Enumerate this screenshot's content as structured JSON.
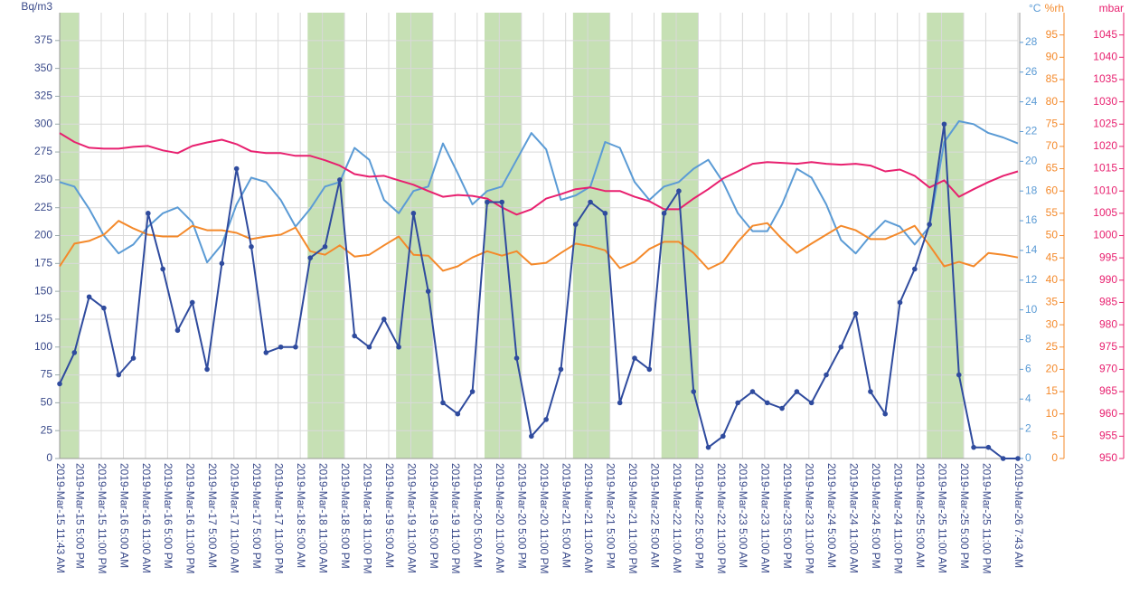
{
  "chart_data": {
    "type": "line",
    "y_label": "Bq/m3",
    "y2_label": "°C",
    "y3_label": "%rh",
    "y4_label": "mbar",
    "x": [
      "2019-Mar-15 11:43 AM",
      "2019-Mar-15 3:43 PM",
      "2019-Mar-15 7:43 PM",
      "2019-Mar-15 11:43 PM",
      "2019-Mar-16 3:43 AM",
      "2019-Mar-16 7:43 AM",
      "2019-Mar-16 11:43 AM",
      "2019-Mar-16 3:43 PM",
      "2019-Mar-16 7:43 PM",
      "2019-Mar-16 11:43 PM",
      "2019-Mar-17 3:43 AM",
      "2019-Mar-17 7:43 AM",
      "2019-Mar-17 11:43 AM",
      "2019-Mar-17 3:43 PM",
      "2019-Mar-17 7:43 PM",
      "2019-Mar-17 11:43 PM",
      "2019-Mar-18 3:43 AM",
      "2019-Mar-18 7:43 AM",
      "2019-Mar-18 11:43 AM",
      "2019-Mar-18 3:43 PM",
      "2019-Mar-18 7:43 PM",
      "2019-Mar-18 11:43 PM",
      "2019-Mar-19 3:43 AM",
      "2019-Mar-19 7:43 AM",
      "2019-Mar-19 11:43 AM",
      "2019-Mar-19 3:43 PM",
      "2019-Mar-19 7:43 PM",
      "2019-Mar-19 11:43 PM",
      "2019-Mar-20 3:43 AM",
      "2019-Mar-20 7:43 AM",
      "2019-Mar-20 11:43 AM",
      "2019-Mar-20 3:43 PM",
      "2019-Mar-20 7:43 PM",
      "2019-Mar-20 11:43 PM",
      "2019-Mar-21 3:43 AM",
      "2019-Mar-21 7:43 AM",
      "2019-Mar-21 11:43 AM",
      "2019-Mar-21 3:43 PM",
      "2019-Mar-21 7:43 PM",
      "2019-Mar-21 11:43 PM",
      "2019-Mar-22 3:43 AM",
      "2019-Mar-22 7:43 AM",
      "2019-Mar-22 11:43 AM",
      "2019-Mar-22 3:43 PM",
      "2019-Mar-22 7:43 PM",
      "2019-Mar-22 11:43 PM",
      "2019-Mar-23 3:43 AM",
      "2019-Mar-23 7:43 AM",
      "2019-Mar-23 11:43 AM",
      "2019-Mar-23 3:43 PM",
      "2019-Mar-23 7:43 PM",
      "2019-Mar-23 11:43 PM",
      "2019-Mar-24 3:43 AM",
      "2019-Mar-24 7:43 AM",
      "2019-Mar-24 11:43 AM",
      "2019-Mar-24 3:43 PM",
      "2019-Mar-24 7:43 PM",
      "2019-Mar-24 11:43 PM",
      "2019-Mar-25 3:43 AM",
      "2019-Mar-25 7:43 AM",
      "2019-Mar-25 11:43 AM",
      "2019-Mar-25 3:43 PM",
      "2019-Mar-25 7:43 PM",
      "2019-Mar-25 11:43 PM",
      "2019-Mar-26 3:43 AM",
      "2019-Mar-26 7:43 AM"
    ],
    "series": [
      {
        "axis": "y",
        "color": "#2f4b9e",
        "markers": true,
        "values": [
          67,
          95,
          145,
          135,
          75,
          90,
          220,
          170,
          115,
          140,
          80,
          175,
          260,
          190,
          95,
          100,
          100,
          180,
          190,
          250,
          110,
          100,
          125,
          100,
          220,
          150,
          50,
          40,
          60,
          230,
          230,
          90,
          20,
          35,
          80,
          210,
          230,
          220,
          50,
          90,
          80,
          220,
          240,
          60,
          10,
          20,
          50,
          60,
          50,
          45,
          60,
          50,
          75,
          100,
          130,
          60,
          40,
          140,
          170,
          210,
          300,
          75,
          10,
          10,
          0,
          0
        ]
      },
      {
        "axis": "y2",
        "color": "#5b9bd5",
        "values": [
          18.6,
          18.3,
          16.8,
          15,
          13.8,
          14.4,
          15.6,
          16.5,
          16.9,
          15.9,
          13.2,
          14.4,
          17.1,
          18.9,
          18.6,
          17.4,
          15.6,
          16.8,
          18.3,
          18.6,
          20.9,
          20.1,
          17.4,
          16.5,
          18,
          18.3,
          21.2,
          19.2,
          17.1,
          18,
          18.3,
          20.1,
          21.9,
          20.8,
          17.4,
          17.7,
          18.3,
          21.3,
          20.9,
          18.6,
          17.4,
          18.3,
          18.6,
          19.5,
          20.1,
          18.6,
          16.5,
          15.3,
          15.3,
          17.1,
          19.5,
          18.9,
          17.1,
          14.7,
          13.8,
          15,
          16,
          15.6,
          14.4,
          15.6,
          21.3,
          22.7,
          22.5,
          21.9,
          21.6,
          21.2
        ]
      },
      {
        "axis": "y3",
        "color": "#f4892a",
        "values": [
          43.1,
          48.2,
          48.8,
          50.2,
          53.3,
          51.6,
          50.2,
          49.8,
          49.8,
          52.2,
          51.2,
          51.2,
          50.6,
          49.2,
          49.8,
          50.2,
          51.8,
          46.5,
          45.7,
          47.8,
          45.3,
          45.7,
          47.8,
          49.8,
          45.7,
          45.5,
          42.1,
          43.1,
          45.1,
          46.5,
          45.5,
          46.5,
          43.5,
          43.9,
          46.1,
          48.2,
          47.6,
          46.7,
          42.7,
          44.1,
          47,
          48.6,
          48.6,
          46.1,
          42.5,
          44.1,
          48.6,
          52.2,
          52.8,
          49.2,
          46.1,
          48.2,
          50.2,
          52.2,
          51.2,
          49.2,
          49.2,
          50.6,
          52.2,
          47.8,
          43.1,
          44.1,
          43.1,
          46.1,
          45.7,
          45.1
        ]
      },
      {
        "axis": "y4",
        "color": "#e8206f",
        "values": [
          1023,
          1021,
          1019.7,
          1019.5,
          1019.5,
          1019.9,
          1020.1,
          1019.1,
          1018.5,
          1020.1,
          1020.9,
          1021.5,
          1020.5,
          1018.9,
          1018.5,
          1018.5,
          1017.9,
          1017.9,
          1016.9,
          1015.7,
          1013.8,
          1013.2,
          1013.4,
          1012.4,
          1011.4,
          1010,
          1008.7,
          1009.1,
          1008.9,
          1008.3,
          1006.3,
          1004.7,
          1005.9,
          1008.3,
          1009.3,
          1010.4,
          1010.8,
          1010,
          1010,
          1008.7,
          1007.7,
          1005.9,
          1005.9,
          1008.3,
          1010.4,
          1012.8,
          1014.4,
          1016.1,
          1016.5,
          1016.3,
          1016.1,
          1016.5,
          1016.1,
          1015.9,
          1016.1,
          1015.7,
          1014.4,
          1014.8,
          1013.4,
          1010.8,
          1012.4,
          1008.7,
          1010.4,
          1012,
          1013.4,
          1014.4
        ]
      }
    ],
    "bands": [
      [
        "2019-Mar-15 11:43 AM",
        "2019-Mar-15 5:00 PM"
      ],
      [
        "2019-Mar-18 7:00 AM",
        "2019-Mar-18 5:00 PM"
      ],
      [
        "2019-Mar-19 7:00 AM",
        "2019-Mar-19 5:00 PM"
      ],
      [
        "2019-Mar-20 7:00 AM",
        "2019-Mar-20 5:00 PM"
      ],
      [
        "2019-Mar-21 7:00 AM",
        "2019-Mar-21 5:00 PM"
      ],
      [
        "2019-Mar-22 7:00 AM",
        "2019-Mar-22 5:00 PM"
      ],
      [
        "2019-Mar-25 7:00 AM",
        "2019-Mar-25 5:00 PM"
      ]
    ],
    "band_color": "#c6e0b4",
    "xlim": [
      "2019-Mar-15 11:43 AM",
      "2019-Mar-26 7:43 AM"
    ],
    "xticks": [
      "2019-Mar-15 11:43 AM",
      "2019-Mar-15 5:00 PM",
      "2019-Mar-15 11:00 PM",
      "2019-Mar-16 5:00 AM",
      "2019-Mar-16 11:00 AM",
      "2019-Mar-16 5:00 PM",
      "2019-Mar-16 11:00 PM",
      "2019-Mar-17 5:00 AM",
      "2019-Mar-17 11:00 AM",
      "2019-Mar-17 5:00 PM",
      "2019-Mar-17 11:00 PM",
      "2019-Mar-18 5:00 AM",
      "2019-Mar-18 11:00 AM",
      "2019-Mar-18 5:00 PM",
      "2019-Mar-18 11:00 PM",
      "2019-Mar-19 5:00 AM",
      "2019-Mar-19 11:00 AM",
      "2019-Mar-19 5:00 PM",
      "2019-Mar-19 11:00 PM",
      "2019-Mar-20 5:00 AM",
      "2019-Mar-20 11:00 AM",
      "2019-Mar-20 5:00 PM",
      "2019-Mar-20 11:00 PM",
      "2019-Mar-21 5:00 AM",
      "2019-Mar-21 11:00 AM",
      "2019-Mar-21 5:00 PM",
      "2019-Mar-21 11:00 PM",
      "2019-Mar-22 5:00 AM",
      "2019-Mar-22 11:00 AM",
      "2019-Mar-22 5:00 PM",
      "2019-Mar-22 11:00 PM",
      "2019-Mar-23 5:00 AM",
      "2019-Mar-23 11:00 AM",
      "2019-Mar-23 5:00 PM",
      "2019-Mar-23 11:00 PM",
      "2019-Mar-24 5:00 AM",
      "2019-Mar-24 11:00 AM",
      "2019-Mar-24 5:00 PM",
      "2019-Mar-24 11:00 PM",
      "2019-Mar-25 5:00 AM",
      "2019-Mar-25 11:00 AM",
      "2019-Mar-25 5:00 PM",
      "2019-Mar-25 11:00 PM",
      "2019-Mar-26 7:43 AM"
    ],
    "ylim": [
      0,
      400
    ],
    "yticks": [
      0,
      25,
      50,
      75,
      100,
      125,
      150,
      175,
      200,
      225,
      250,
      275,
      300,
      325,
      350,
      375
    ],
    "y2lim": [
      0,
      30
    ],
    "y2ticks": [
      0,
      2,
      4,
      6,
      8,
      10,
      12,
      14,
      16,
      18,
      20,
      22,
      24,
      26,
      28
    ],
    "y3lim": [
      0,
      100
    ],
    "y3ticks": [
      0,
      5,
      10,
      15,
      20,
      25,
      30,
      35,
      40,
      45,
      50,
      55,
      60,
      65,
      70,
      75,
      80,
      85,
      90,
      95
    ],
    "y4lim": [
      950,
      1050
    ],
    "y4ticks": [
      950,
      955,
      960,
      965,
      970,
      975,
      980,
      985,
      990,
      995,
      1000,
      1005,
      1010,
      1015,
      1020,
      1025,
      1030,
      1035,
      1040,
      1045
    ],
    "grid": true
  }
}
